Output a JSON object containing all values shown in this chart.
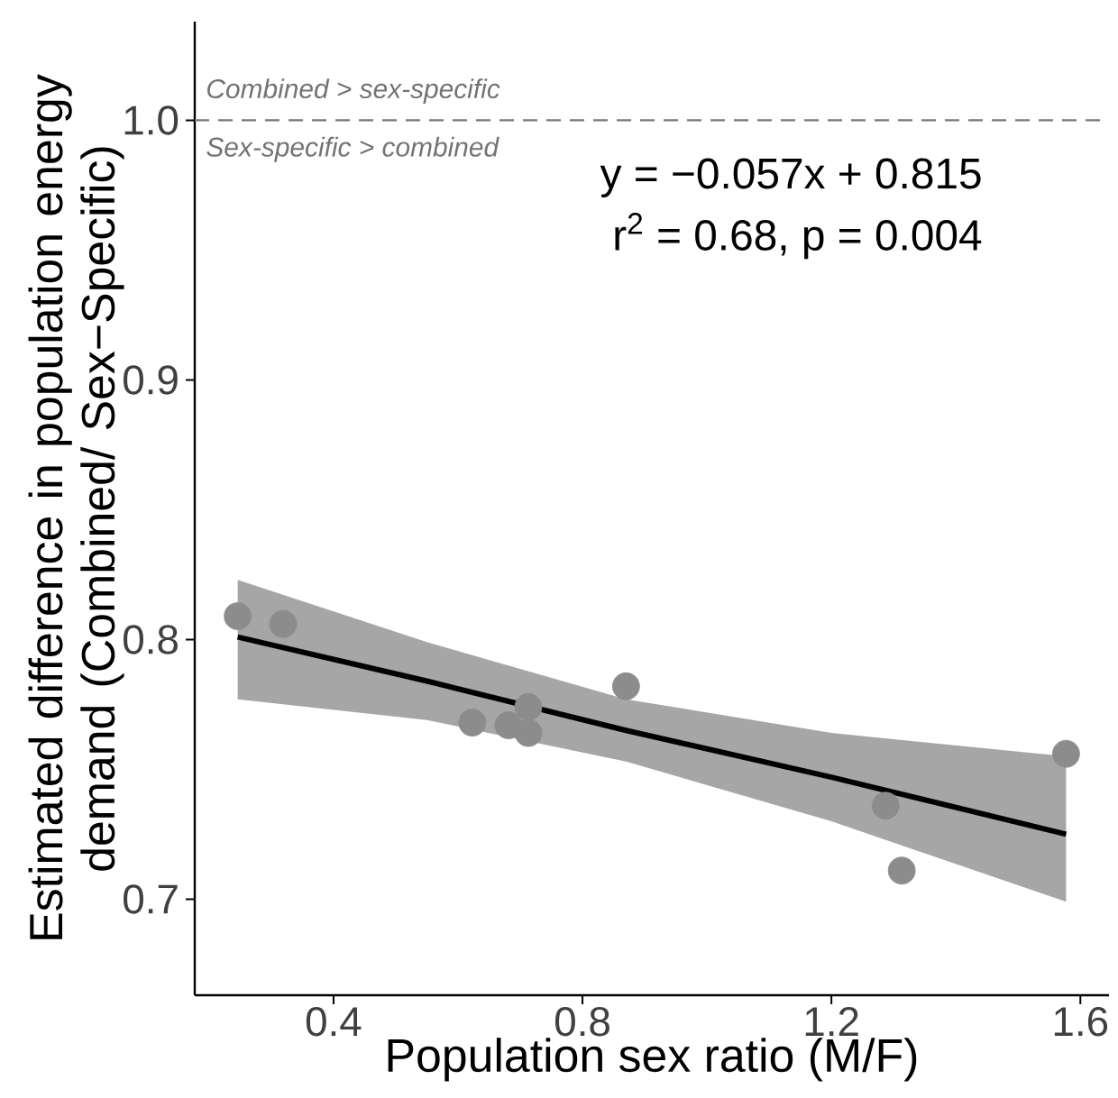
{
  "chart_data": {
    "type": "scatter",
    "xlabel": "Population sex ratio (M/F)",
    "ylabel": "Estimated difference in population energy demand (Combined/ Sex−Specific)",
    "xlim": [
      0.177,
      1.646
    ],
    "ylim": [
      0.663,
      1.038
    ],
    "xticks": [
      0.4,
      0.8,
      1.2,
      1.6
    ],
    "yticks": [
      0.7,
      0.8,
      0.9,
      {
        "value": 1.0,
        "label": "1.0"
      }
    ],
    "series": [
      {
        "color": "#8c8c8c",
        "marker": "circle",
        "x": [
          0.246,
          0.319,
          0.623,
          0.681,
          0.713,
          0.713,
          0.87,
          1.287,
          1.313,
          1.577
        ],
        "values": [
          0.809,
          0.806,
          0.768,
          0.767,
          0.774,
          0.764,
          0.782,
          0.736,
          0.711,
          0.756
        ]
      },
      {
        "type": "line",
        "color": "#000000",
        "marker": "none",
        "line_style": "solid",
        "x": [
          0.246,
          0.55,
          0.87,
          1.2,
          1.577
        ],
        "values": [
          0.801,
          0.784,
          0.765,
          0.747,
          0.725
        ],
        "lower": [
          0.777,
          0.769,
          0.753,
          0.73,
          0.699
        ],
        "upper": [
          0.823,
          0.799,
          0.777,
          0.764,
          0.755
        ]
      }
    ],
    "ref_lines": [
      {
        "axis": "y",
        "value": 1.0,
        "color": "#777777",
        "line_style": "dashed",
        "label": "*Combined > sex-specific*"
      }
    ],
    "annotations": [
      "*Sex-specific > combined*",
      "y = −0.057x + 0.815",
      "r$^{2}$ = 0.68, p = 0.004"
    ]
  }
}
